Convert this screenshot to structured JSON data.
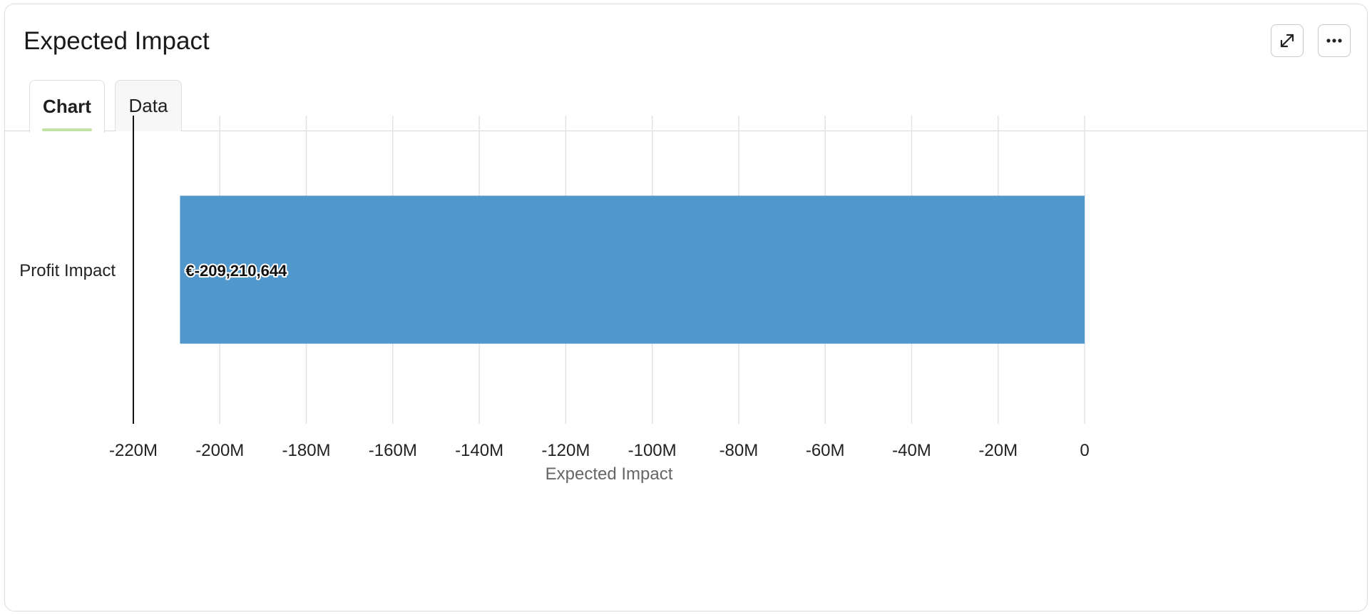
{
  "card": {
    "title": "Expected Impact",
    "expand_icon": "expand-arrows-icon",
    "more_icon": "more-horizontal-icon"
  },
  "tabs": [
    {
      "label": "Chart",
      "active": true
    },
    {
      "label": "Data",
      "active": false
    }
  ],
  "chart_data": {
    "type": "bar",
    "orientation": "horizontal",
    "categories": [
      "Profit Impact"
    ],
    "values": [
      -209210644
    ],
    "data_labels": [
      "€-209,210,644"
    ],
    "xlabel": "Expected Impact",
    "xlim": [
      -220000000,
      0
    ],
    "x_ticks": [
      -220000000,
      -200000000,
      -180000000,
      -160000000,
      -140000000,
      -120000000,
      -100000000,
      -80000000,
      -60000000,
      -40000000,
      -20000000,
      0
    ],
    "x_tick_labels": [
      "-220M",
      "-200M",
      "-180M",
      "-160M",
      "-140M",
      "-120M",
      "-100M",
      "-80M",
      "-60M",
      "-40M",
      "-20M",
      "0"
    ],
    "grid": "vertical",
    "bar_color": "#5098cb",
    "grid_color": "#e3e3e3"
  }
}
